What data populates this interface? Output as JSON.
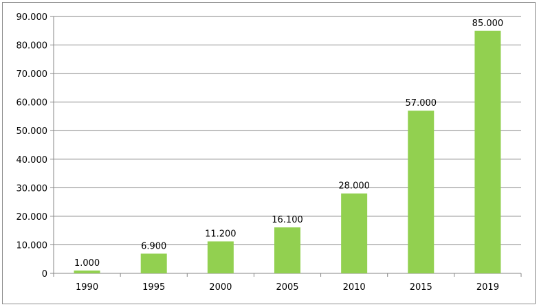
{
  "chart_data": {
    "type": "bar",
    "categories": [
      "1990",
      "1995",
      "2000",
      "2005",
      "2010",
      "2015",
      "2019"
    ],
    "values": [
      1000,
      6900,
      11200,
      16100,
      28000,
      57000,
      85000
    ],
    "value_labels": [
      "1.000",
      "6.900",
      "11.200",
      "16.100",
      "28.000",
      "57.000",
      "85.000"
    ],
    "y_ticks": [
      0,
      10000,
      20000,
      30000,
      40000,
      50000,
      60000,
      70000,
      80000,
      90000
    ],
    "y_tick_labels": [
      "0",
      "10.000",
      "20.000",
      "30.000",
      "40.000",
      "50.000",
      "60.000",
      "70.000",
      "80.000",
      "90.000"
    ],
    "ylim": [
      0,
      90000
    ],
    "title": "",
    "xlabel": "",
    "ylabel": "",
    "grid": true,
    "legend": "none",
    "bar_color": "#92d050",
    "grid_color": "#868686"
  }
}
